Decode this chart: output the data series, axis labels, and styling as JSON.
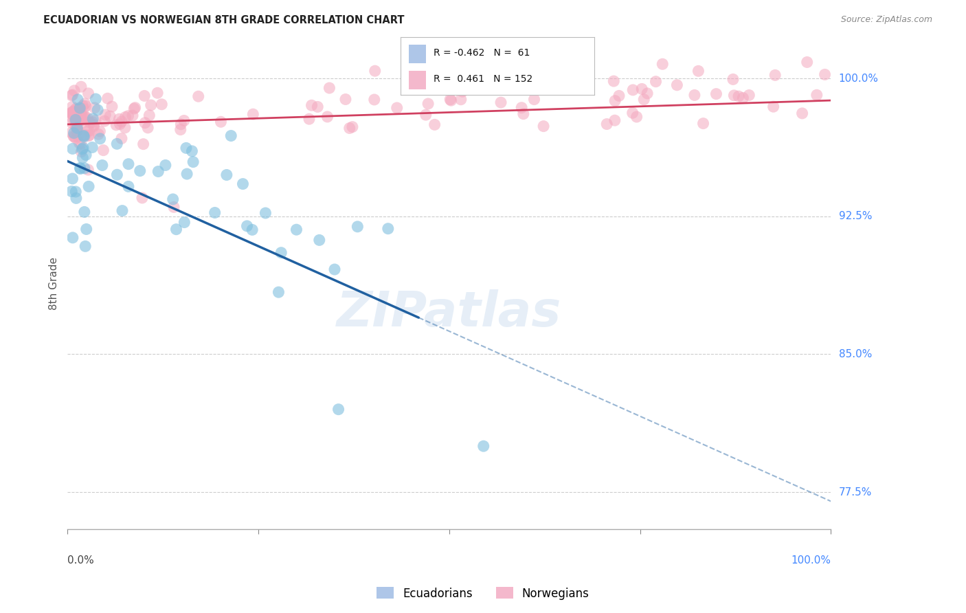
{
  "title": "ECUADORIAN VS NORWEGIAN 8TH GRADE CORRELATION CHART",
  "source": "Source: ZipAtlas.com",
  "ylabel": "8th Grade",
  "ytick_labels": [
    "77.5%",
    "85.0%",
    "92.5%",
    "100.0%"
  ],
  "ytick_values": [
    0.775,
    0.85,
    0.925,
    1.0
  ],
  "xlim": [
    0.0,
    1.0
  ],
  "ylim": [
    0.755,
    1.022
  ],
  "R_ecuadorian": -0.462,
  "N_ecuadorian": 61,
  "R_norwegian": 0.461,
  "N_norwegian": 152,
  "ecuadorian_color": "#7fbfdf",
  "norwegian_color": "#f4a8be",
  "trend_ecuadorian_color": "#2060a0",
  "trend_norwegian_color": "#d04060",
  "background_color": "#ffffff",
  "title_fontsize": 11,
  "legend_box_text_color": "#222222",
  "right_label_color": "#4488ff",
  "source_color": "#888888"
}
